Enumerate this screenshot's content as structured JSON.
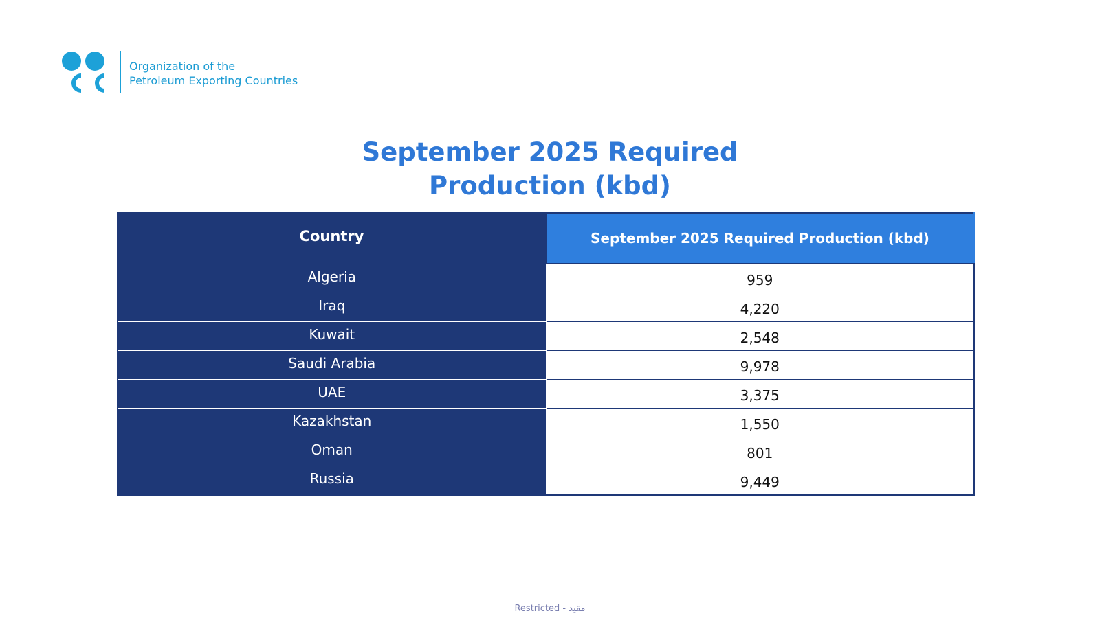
{
  "organization": {
    "name_line1": "Organization of the",
    "name_line2": "Petroleum Exporting Countries",
    "logo_icon": "opec-logo-icon",
    "brand_color": "#1a9bd3"
  },
  "title": {
    "line1": "September 2025 Required",
    "line2": "Production (kbd)",
    "color": "#2f78d6"
  },
  "table": {
    "headers": [
      "Country",
      "September 2025 Required Production (kbd)"
    ],
    "header_colors": [
      "#1e3877",
      "#2f7fde"
    ],
    "rows": [
      {
        "country": "Algeria",
        "value": "959"
      },
      {
        "country": "Iraq",
        "value": "4,220"
      },
      {
        "country": "Kuwait",
        "value": "2,548"
      },
      {
        "country": "Saudi Arabia",
        "value": "9,978"
      },
      {
        "country": "UAE",
        "value": "3,375"
      },
      {
        "country": "Kazakhstan",
        "value": "1,550"
      },
      {
        "country": "Oman",
        "value": "801"
      },
      {
        "country": "Russia",
        "value": "9,449"
      }
    ]
  },
  "footer": {
    "classification": "Restricted - مقيد"
  }
}
